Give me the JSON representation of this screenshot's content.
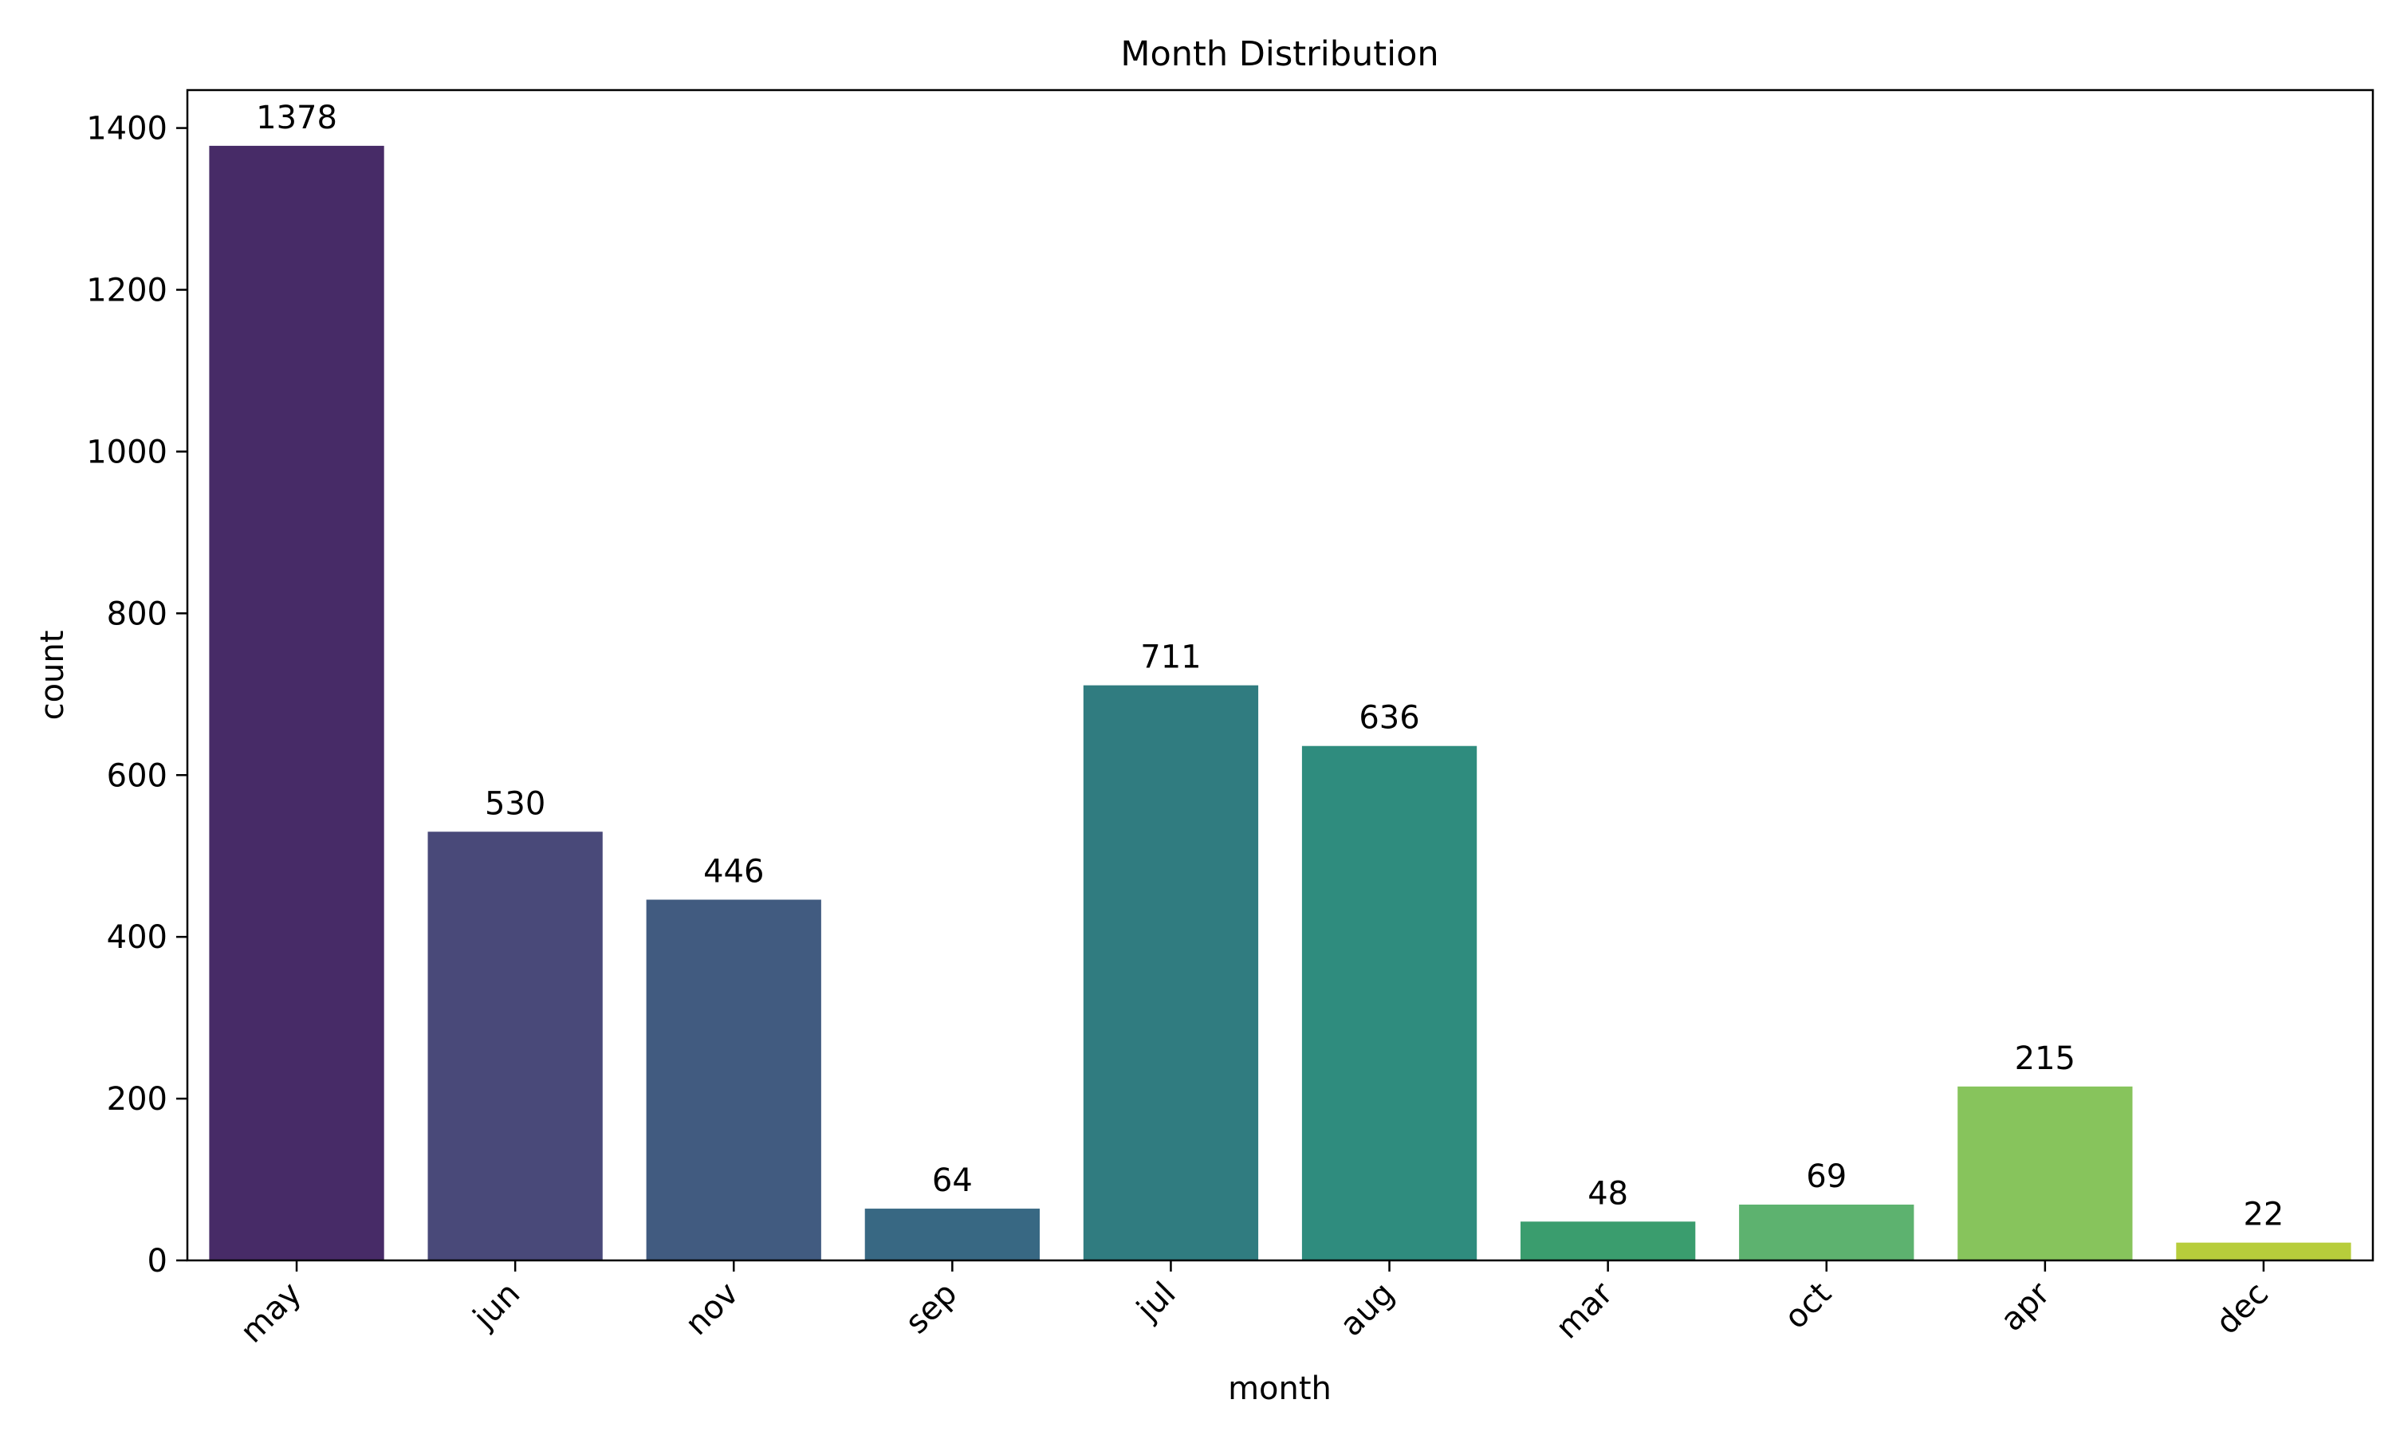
{
  "chart_data": {
    "type": "bar",
    "title": "Month Distribution",
    "xlabel": "month",
    "ylabel": "count",
    "categories": [
      "may",
      "jun",
      "nov",
      "sep",
      "jul",
      "aug",
      "mar",
      "oct",
      "apr",
      "dec"
    ],
    "values": [
      1378,
      530,
      446,
      64,
      711,
      636,
      48,
      69,
      215,
      22
    ],
    "data_labels": [
      "1378",
      "530",
      "446",
      "64",
      "711",
      "636",
      "48",
      "69",
      "215",
      "22"
    ],
    "colors": [
      "#472b67",
      "#494979",
      "#415b80",
      "#386883",
      "#307c80",
      "#2f8c7e",
      "#3a9d6e",
      "#5db26f",
      "#87c45c",
      "#b7cd3b"
    ],
    "ylim": [
      0,
      1446.9
    ],
    "yticks": [
      0,
      200,
      400,
      600,
      800,
      1000,
      1200,
      1400
    ],
    "ytick_labels": [
      "0",
      "200",
      "400",
      "600",
      "800",
      "1000",
      "1200",
      "1400"
    ],
    "grid": false,
    "legend": "none"
  }
}
